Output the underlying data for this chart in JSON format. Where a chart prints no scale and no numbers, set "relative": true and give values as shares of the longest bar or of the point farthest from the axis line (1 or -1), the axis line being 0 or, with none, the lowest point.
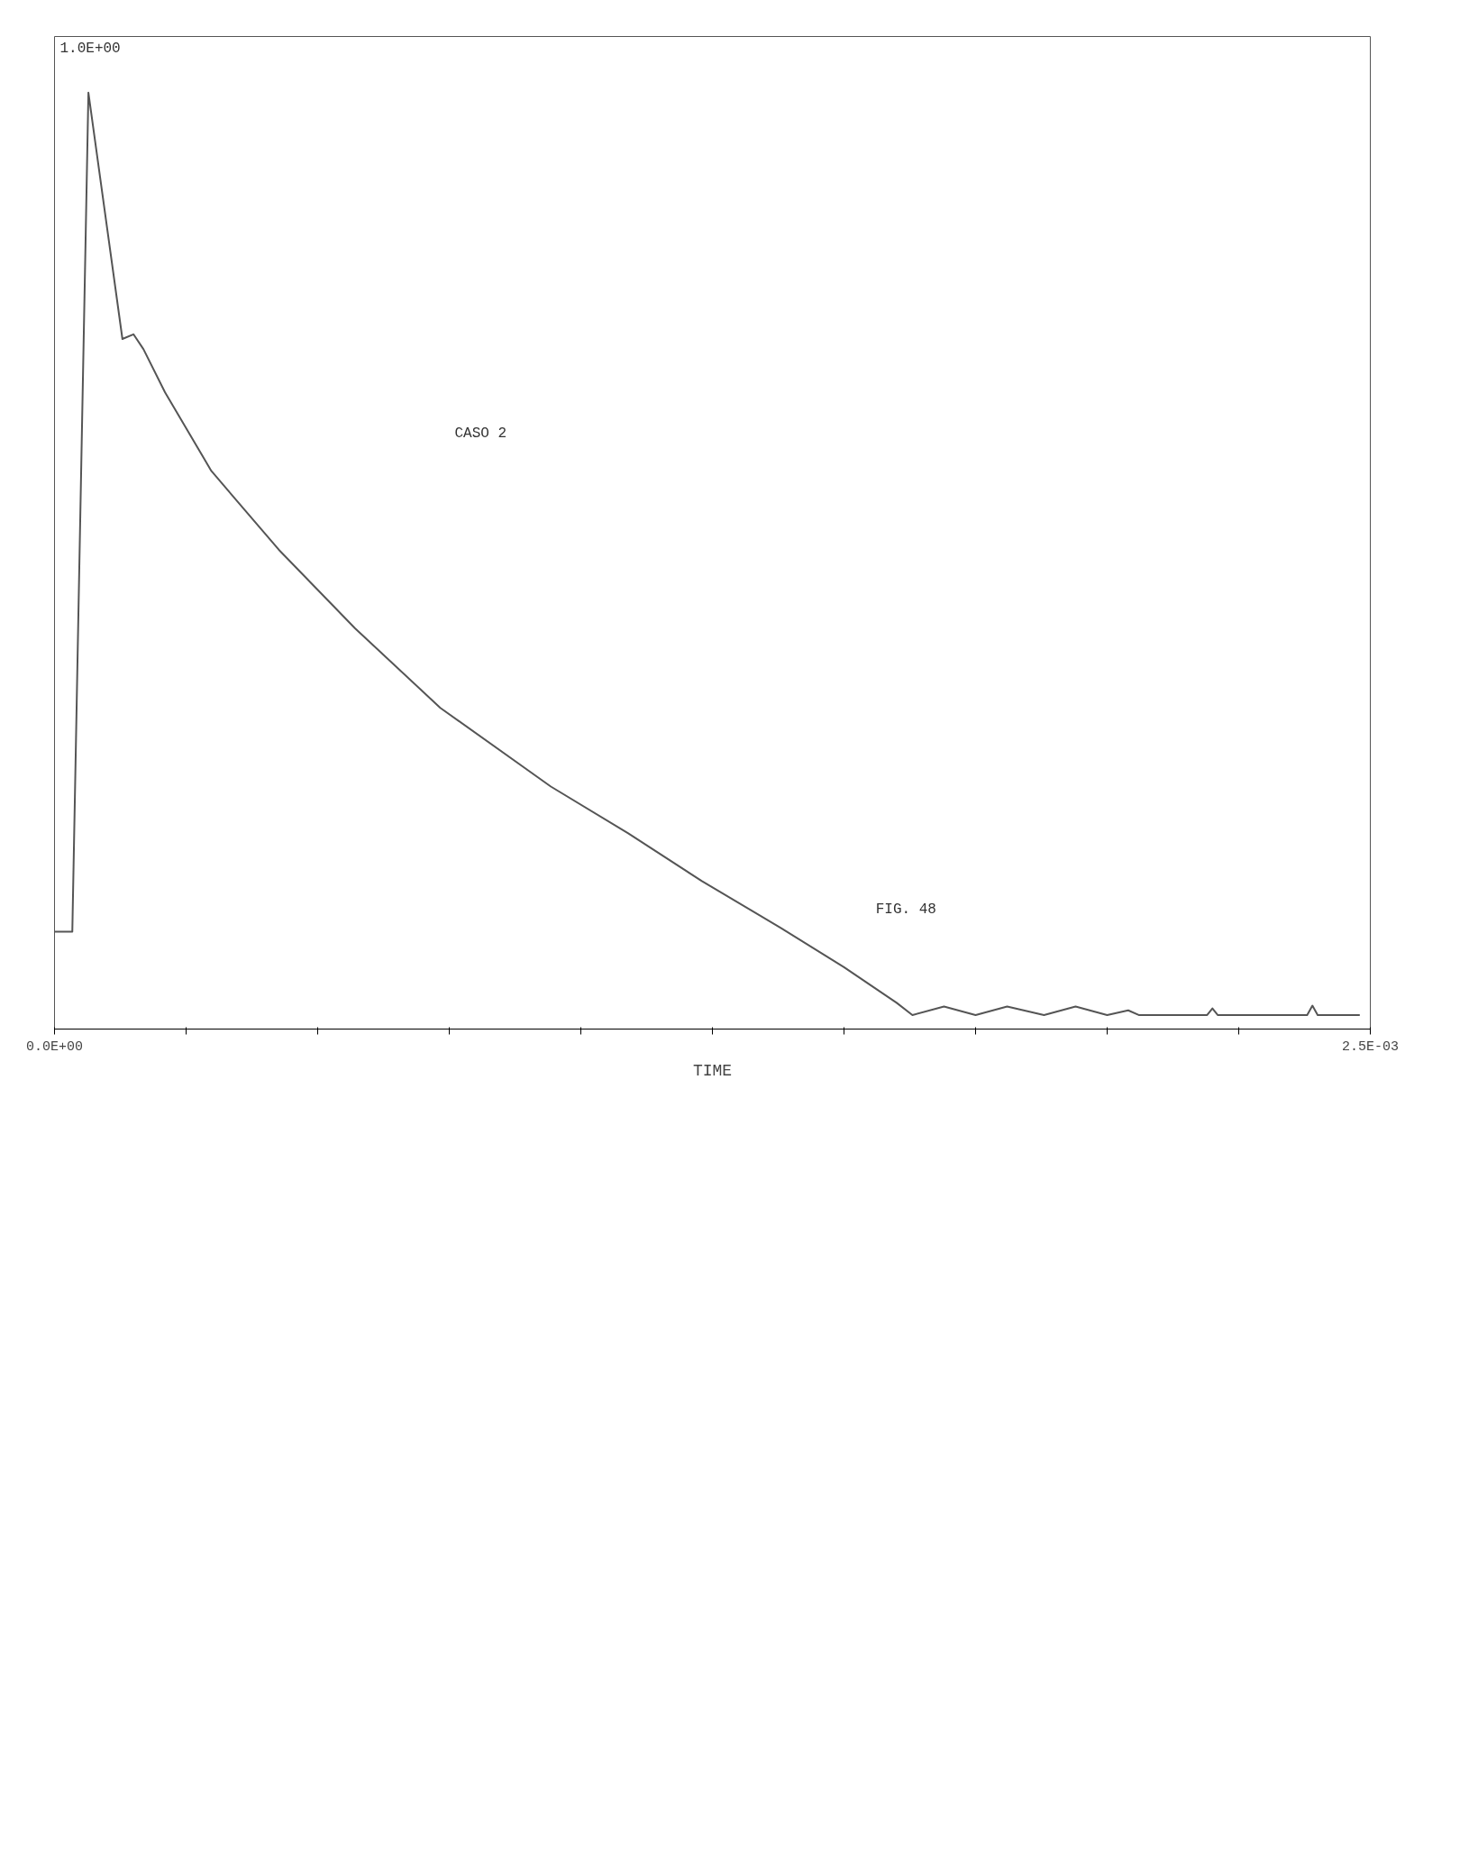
{
  "chart_data": {
    "type": "line",
    "xlabel": "TIME",
    "relative": true,
    "annotations": [
      "CASO 2",
      "FIG. 48",
      "1.0E+00"
    ],
    "xlim": [
      0,
      0.0025
    ],
    "xticks": [
      {
        "value": 0,
        "label": "0.0E+00"
      },
      {
        "value": 0.00025,
        "label": null
      },
      {
        "value": 0.0005,
        "label": null
      },
      {
        "value": 0.00075,
        "label": null
      },
      {
        "value": 0.001,
        "label": null
      },
      {
        "value": 0.00125,
        "label": null
      },
      {
        "value": 0.0015,
        "label": null
      },
      {
        "value": 0.00175,
        "label": null
      },
      {
        "value": 0.002,
        "label": null
      },
      {
        "value": 0.00225,
        "label": null
      },
      {
        "value": 0.0025,
        "label": "2.5E-03"
      }
    ],
    "grid": false,
    "marker": "none",
    "line_style": "solid",
    "series": [
      {
        "color": "#555555",
        "x": [
          0,
          3.38e-05,
          6.44e-05,
          0.000129,
          0.00015,
          0.000169,
          0.00021,
          0.000298,
          0.000426,
          0.000571,
          0.000733,
          0.000943,
          0.00109,
          0.00123,
          0.00138,
          0.0015,
          0.0016,
          0.00163,
          0.00169,
          0.00175,
          0.00181,
          0.00188,
          0.00194,
          0.002,
          0.00204,
          0.00206,
          0.00219,
          0.0022,
          0.00221,
          0.00238,
          0.00239,
          0.0024,
          0.00248
        ],
        "values": [
          0.104,
          0.104,
          1.0,
          0.737,
          0.742,
          0.726,
          0.68,
          0.596,
          0.512,
          0.428,
          0.343,
          0.259,
          0.209,
          0.158,
          0.108,
          0.066,
          0.028,
          0.015,
          0.024,
          0.015,
          0.024,
          0.015,
          0.024,
          0.015,
          0.02,
          0.015,
          0.015,
          0.022,
          0.015,
          0.015,
          0.025,
          0.015,
          0.015
        ]
      }
    ]
  }
}
